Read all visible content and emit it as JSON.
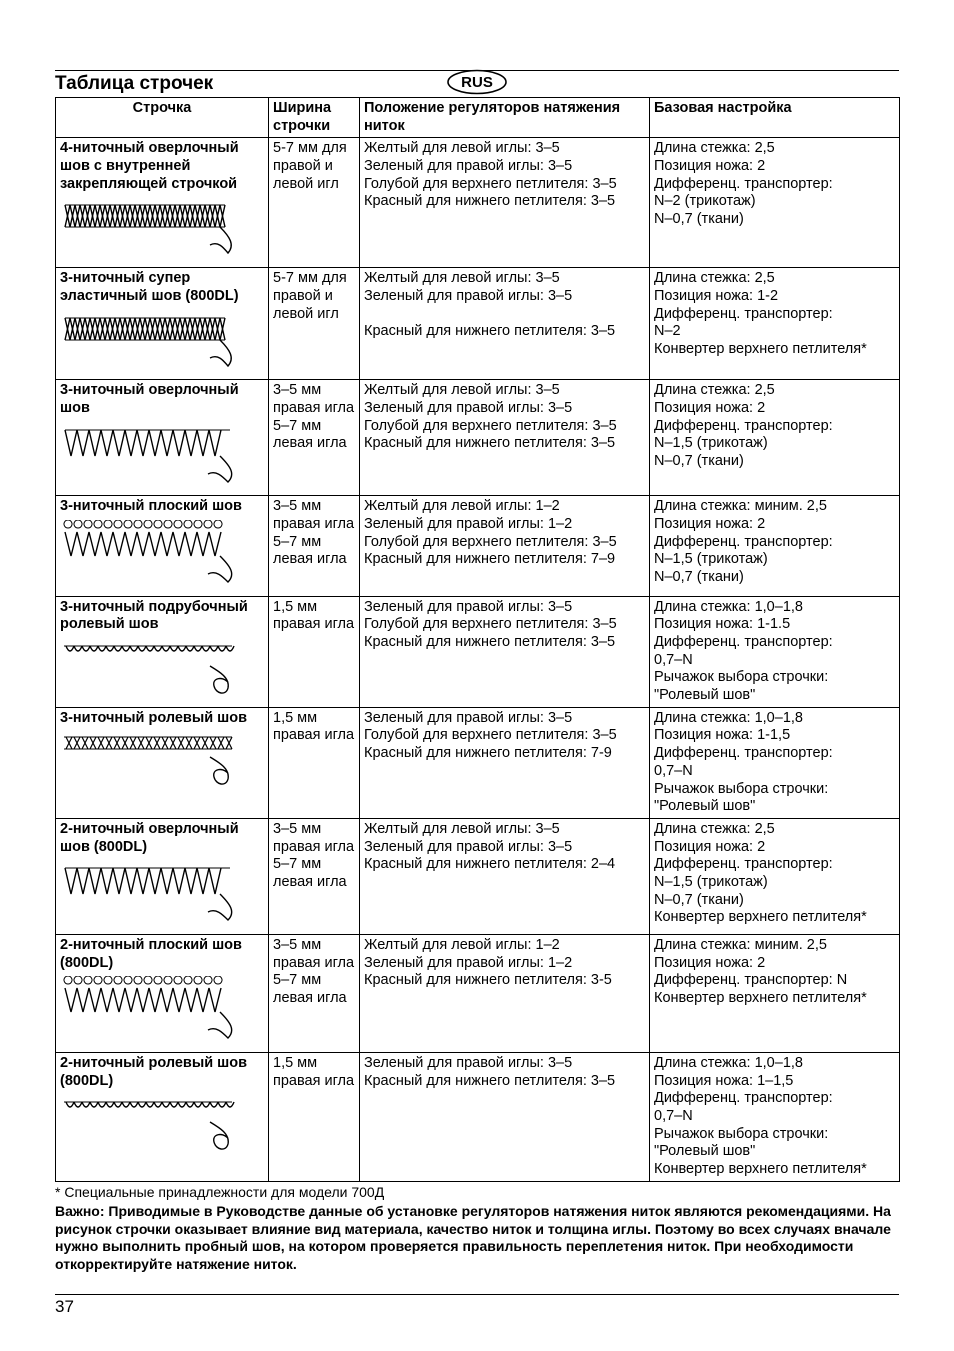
{
  "page_number": "37",
  "lang_badge": "RUS",
  "title": "Таблица строчек",
  "footnote_text": "* Специальные принадлежности для модели 700Д",
  "footnote_bold": "Важно: Приводимые в Руководстве данные об установке регуляторов натяжения ниток являются рекомендациями. На рисунок строчки оказывает влияние вид материала, качество ниток и толщина иглы. Поэтому во всех случаях вначале нужно выполнить пробный шов, на котором проверяется правильность переплетения ниток. При необходимости откорректируйте  натяжение ниток.",
  "headers": {
    "c1": "Строчка",
    "c2": "Ширина строчки",
    "c3": "Положение регуляторов натяжения ниток",
    "c4": "Базовая настройка"
  },
  "rows": [
    {
      "name": "4-ниточный оверлочный шов с внутренней закрепляющей строчкой",
      "pattern": "overlock_braid",
      "width": "5-7 мм для правой и левой игл",
      "tension": [
        "Желтый для левой иглы: 3–5",
        "Зеленый для правой иглы: 3–5",
        "Голубой для верхнего петлителя: 3–5",
        "Красный для нижнего петлителя: 3–5"
      ],
      "base": [
        "Длина стежка: 2,5",
        "Позиция ножа: 2",
        "Дифференц. транспортер:",
        "N–2 (трикотаж)",
        "N–0,7 (ткани)"
      ]
    },
    {
      "name": "3-ниточный супер эластичный шов (800DL)",
      "pattern": "overlock_braid",
      "width": "5-7 мм для правой и левой игл",
      "tension": [
        "Желтый для левой иглы: 3–5",
        "Зеленый для правой иглы: 3–5",
        "",
        "Красный для нижнего петлителя: 3–5"
      ],
      "base": [
        "Длина стежка: 2,5",
        "Позиция ножа: 1-2",
        "Дифференц. транспортер:",
        "N–2",
        "Конвертер верхнего петлителя*"
      ]
    },
    {
      "name": "3-ниточный оверлочный шов",
      "pattern": "zigzag_tail",
      "width": "3–5 мм правая игла\n5–7 мм левая игла",
      "tension": [
        "Желтый для левой иглы: 3–5",
        "Зеленый для правой иглы: 3–5",
        "Голубой для верхнего петлителя: 3–5",
        "Красный для нижнего петлителя: 3–5"
      ],
      "base": [
        "Длина стежка: 2,5",
        "Позиция ножа: 2",
        "Дифференц. транспортер:",
        "N–1,5 (трикотаж)",
        "N–0,7 (ткани)"
      ]
    },
    {
      "name": "3-ниточный плоский шов",
      "pattern": "flat_zigzag_tail",
      "width": "3–5 мм правая игла\n5–7 мм левая игла",
      "tension": [
        "Желтый для левой иглы: 1–2",
        "Зеленый для правой иглы: 1–2",
        "Голубой для верхнего петлителя: 3–5",
        "Красный для нижнего петлителя: 7–9"
      ],
      "base": [
        "Длина стежка: миним. 2,5",
        "Позиция ножа: 2",
        "Дифференц. транспортер:",
        "N–1,5 (трикотаж)",
        "N–0,7 (ткани)"
      ]
    },
    {
      "name": "3-ниточный подрубочный ролевый шов",
      "pattern": "loops_coil",
      "width": "1,5 мм правая игла",
      "tension": [
        "Зеленый для правой иглы: 3–5",
        "Голубой для верхнего петлителя: 3–5",
        "Красный для нижнего петлителя: 3–5"
      ],
      "base": [
        "Длина стежка: 1,0–1,8",
        "Позиция ножа: 1-1.5",
        "Дифференц. транспортер:",
        "0,7–N",
        "Рычажок выбора строчки: \"Ролевый шов\""
      ]
    },
    {
      "name": "3-ниточный ролевый шов",
      "pattern": "cross_coil",
      "width": "1,5 мм правая игла",
      "tension": [
        "Зеленый для правой иглы: 3–5",
        "Голубой для верхнего петлителя: 3–5",
        "Красный для нижнего петлителя: 7-9"
      ],
      "base": [
        "Длина стежка: 1,0–1,8",
        "Позиция ножа: 1-1,5",
        "Дифференц. транспортер:",
        "0,7–N",
        "Рычажок выбора строчки: \"Ролевый шов\""
      ]
    },
    {
      "name": "2-ниточный оверлочный шов (800DL)",
      "pattern": "zigzag_tail",
      "width": "3–5 мм правая игла\n5–7 мм левая игла",
      "tension": [
        "Желтый для левой иглы: 3–5",
        "Зеленый для правой иглы: 3–5",
        "Красный для нижнего петлителя: 2–4"
      ],
      "base": [
        "Длина стежка: 2,5",
        "Позиция ножа: 2",
        "Дифференц. транспортер:",
        "N–1,5 (трикотаж)",
        "N–0,7 (ткани)",
        "Конвертер верхнего петлителя*"
      ]
    },
    {
      "name": "2-ниточный плоский шов (800DL)",
      "pattern": "flat_zigzag_tail",
      "width": "3–5 мм правая игла\n5–7 мм левая игла",
      "tension": [
        "Желтый для левой иглы: 1–2",
        "Зеленый для правой иглы: 1–2",
        "Красный для нижнего петлителя: 3-5"
      ],
      "base": [
        "Длина стежка: миним. 2,5",
        "Позиция ножа: 2",
        "Дифференц. транспортер: N",
        "Конвертер верхнего петлителя*"
      ]
    },
    {
      "name": "2-ниточный ролевый шов (800DL)",
      "pattern": "loops_coil",
      "width": "1,5 мм правая игла",
      "tension": [
        "Зеленый для правой иглы: 3–5",
        "Красный для нижнего петлителя: 3–5"
      ],
      "base": [
        "Длина стежка: 1,0–1,8",
        "Позиция ножа: 1–1,5",
        "Дифференц. транспортер:",
        "0,7–N",
        "Рычажок выбора строчки: \"Ролевый шов\"",
        "Конвертер верхнего петлителя*"
      ]
    }
  ],
  "svg": {
    "row_min_height": 98,
    "stroke": "#000000",
    "stroke_width": 1.4
  }
}
